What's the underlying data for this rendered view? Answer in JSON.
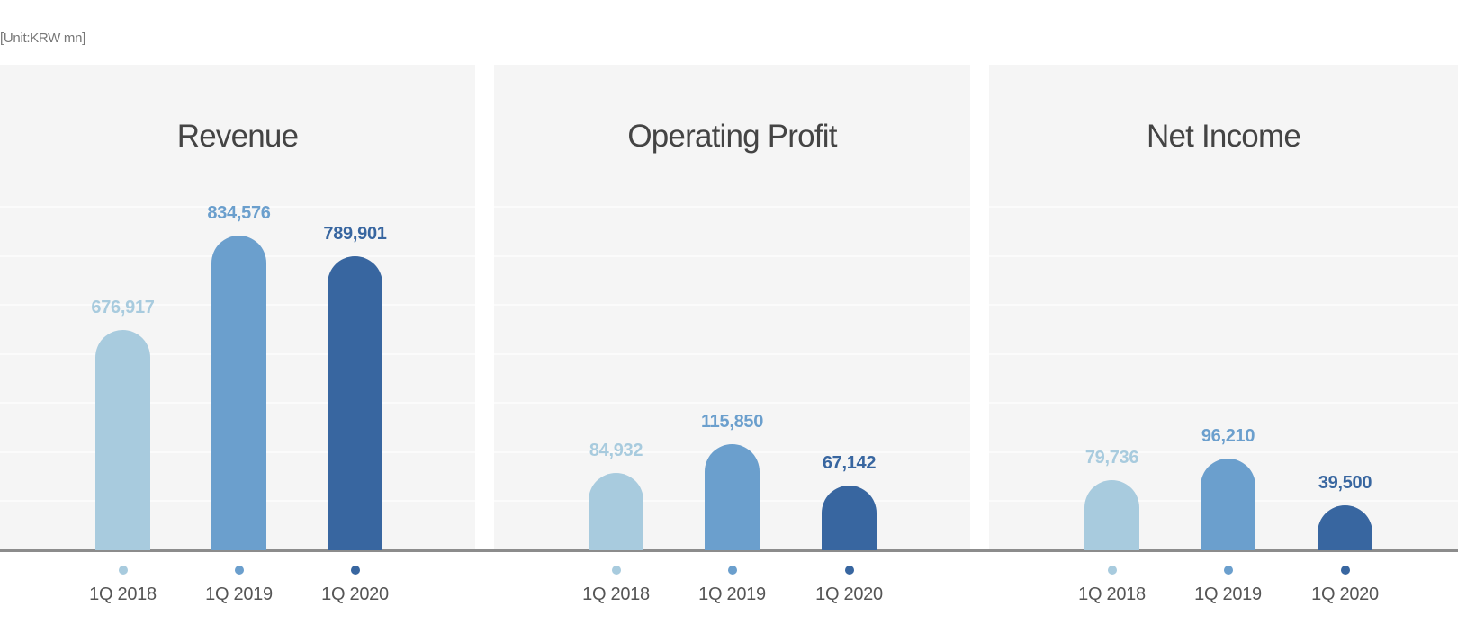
{
  "unit_label": "[Unit:KRW mn]",
  "colors": {
    "1Q 2018": "#a8cbde",
    "1Q 2019": "#6b9fcd",
    "1Q 2020": "#3866a0",
    "panel_bg": "#f5f5f5",
    "baseline": "#8c8c8c"
  },
  "panels": [
    {
      "title": "Revenue",
      "bars": [
        {
          "label": "1Q 2018",
          "value": 676917,
          "display": "676,917"
        },
        {
          "label": "1Q 2019",
          "value": 834576,
          "display": "834,576"
        },
        {
          "label": "1Q 2020",
          "value": 789901,
          "display": "789,901"
        }
      ]
    },
    {
      "title": "Operating Profit",
      "bars": [
        {
          "label": "1Q 2018",
          "value": 84932,
          "display": "84,932"
        },
        {
          "label": "1Q 2019",
          "value": 115850,
          "display": "115,850"
        },
        {
          "label": "1Q 2020",
          "value": 67142,
          "display": "67,142"
        }
      ]
    },
    {
      "title": "Net Income",
      "bars": [
        {
          "label": "1Q 2018",
          "value": 79736,
          "display": "79,736"
        },
        {
          "label": "1Q 2019",
          "value": 96210,
          "display": "96,210"
        },
        {
          "label": "1Q 2020",
          "value": 39500,
          "display": "39,500"
        }
      ]
    }
  ],
  "chart_data": [
    {
      "type": "bar",
      "title": "Revenue",
      "categories": [
        "1Q 2018",
        "1Q 2019",
        "1Q 2020"
      ],
      "values": [
        676917,
        834576,
        789901
      ],
      "unit": "KRW mn",
      "xlabel": "",
      "ylabel": "",
      "grid": true,
      "legend": "dot markers under each category"
    },
    {
      "type": "bar",
      "title": "Operating Profit",
      "categories": [
        "1Q 2018",
        "1Q 2019",
        "1Q 2020"
      ],
      "values": [
        84932,
        115850,
        67142
      ],
      "unit": "KRW mn",
      "xlabel": "",
      "ylabel": "",
      "grid": true,
      "legend": "dot markers under each category"
    },
    {
      "type": "bar",
      "title": "Net Income",
      "categories": [
        "1Q 2018",
        "1Q 2019",
        "1Q 2020"
      ],
      "values": [
        79736,
        96210,
        39500
      ],
      "unit": "KRW mn",
      "xlabel": "",
      "ylabel": "",
      "grid": true,
      "legend": "dot markers under each category"
    }
  ]
}
